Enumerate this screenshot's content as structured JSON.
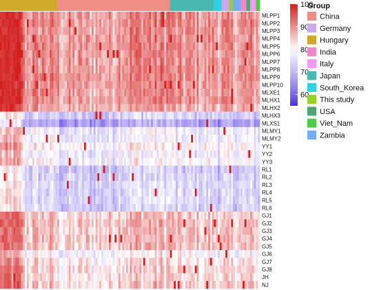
{
  "chart_data": {
    "type": "heatmap",
    "title": "",
    "rows": [
      "MLPP1",
      "MLPP2",
      "MLPP3",
      "MLPP4",
      "MLPP5",
      "MLPP6",
      "MLPP7",
      "MLPP8",
      "MLPP9",
      "MLPP10",
      "MLXE1",
      "MLHX1",
      "MLHX2",
      "MLHX3",
      "MLXS1",
      "MLMY1",
      "MLMY2",
      "YY1",
      "YY2",
      "YY3",
      "RL1",
      "RL2",
      "RL3",
      "RL4",
      "RL5",
      "RL6",
      "GJ1",
      "GJ2",
      "GJ3",
      "GJ4",
      "GJ5",
      "GJ6",
      "GJ7",
      "GJ8",
      "JH",
      "NJ"
    ],
    "row_block_base": [
      88,
      88,
      88,
      88,
      88,
      88,
      88,
      88,
      88,
      88,
      88,
      88,
      86,
      72,
      66,
      76,
      76,
      79,
      76,
      78,
      71,
      72,
      73,
      73,
      73,
      72,
      83,
      84,
      84,
      84,
      84,
      78,
      81,
      82,
      82,
      83
    ],
    "column_groups": [
      {
        "name": "Hungary",
        "count": 30
      },
      {
        "name": "China",
        "count": 59
      },
      {
        "name": "Japan",
        "count": 23
      },
      {
        "name": "South_Korea",
        "count": 4
      },
      {
        "name": "Germany",
        "count": 4
      },
      {
        "name": "This study",
        "count": 2
      },
      {
        "name": "Zambia",
        "count": 4
      },
      {
        "name": "India",
        "count": 3
      },
      {
        "name": "USA",
        "count": 2
      },
      {
        "name": "Italy",
        "count": 3
      },
      {
        "name": "Viet_Nam",
        "count": 2
      }
    ],
    "color_scale": {
      "min": 55,
      "mid": 80,
      "max": 100,
      "ticks": [
        100,
        90,
        80,
        70,
        60
      ],
      "low_color": "#4b2ae0",
      "mid_color": "#ffffff",
      "high_color": "#d41f1f"
    }
  },
  "legend": {
    "title": "Group",
    "items": [
      {
        "label": "China",
        "color": "#ef8d86"
      },
      {
        "label": "Germany",
        "color": "#cda7ee"
      },
      {
        "label": "Hungary",
        "color": "#d1a92a"
      },
      {
        "label": "India",
        "color": "#ee86c7"
      },
      {
        "label": "Italy",
        "color": "#f49af2"
      },
      {
        "label": "Japan",
        "color": "#49b8b1"
      },
      {
        "label": "South_Korea",
        "color": "#2ed3e2"
      },
      {
        "label": "This study",
        "color": "#96d12a"
      },
      {
        "label": "USA",
        "color": "#4ea871"
      },
      {
        "label": "Viet_Nam",
        "color": "#4ecb4b"
      },
      {
        "label": "Zambia",
        "color": "#76aef4"
      }
    ]
  }
}
